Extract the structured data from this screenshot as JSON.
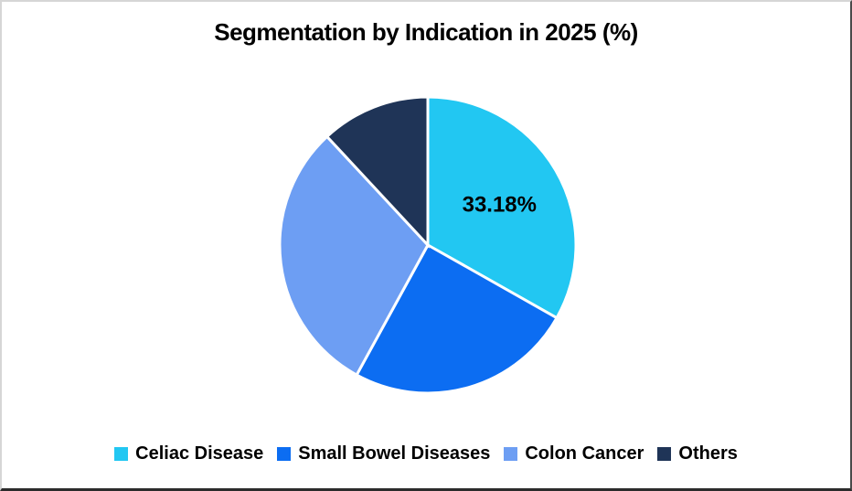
{
  "chart": {
    "title": "Segmentation by Indication in 2025 (%)"
  },
  "chart_data": {
    "type": "pie",
    "title": "Segmentation by Indication in 2025 (%)",
    "unit": "%",
    "start_angle_deg": 0,
    "direction": "clockwise",
    "legend_position": "bottom",
    "data_labels_shown": [
      "33.18%"
    ],
    "segments": [
      {
        "name": "Celiac Disease",
        "value": 33.18,
        "color": "#22C7F2",
        "data_label": "33.18%"
      },
      {
        "name": "Small Bowel Diseases",
        "value": 24.8,
        "color": "#0C6DF2",
        "data_label": ""
      },
      {
        "name": "Colon Cancer",
        "value": 30.1,
        "color": "#6D9EF3",
        "data_label": ""
      },
      {
        "name": "Others",
        "value": 11.92,
        "color": "#1F3457",
        "data_label": ""
      }
    ]
  }
}
